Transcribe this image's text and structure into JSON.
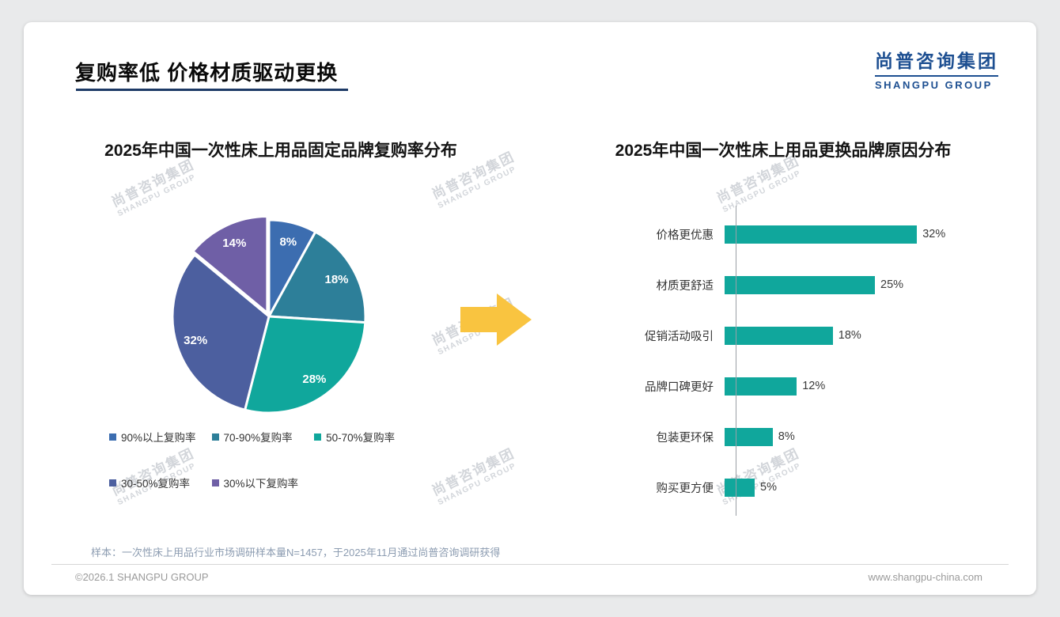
{
  "header": {
    "title": "复购率低 价格材质驱动更换",
    "logo_cn": "尚普咨询集团",
    "logo_en": "SHANGPU GROUP"
  },
  "watermark": {
    "cn": "尚普咨询集团",
    "en": "SHANGPU GROUP"
  },
  "chart_data": [
    {
      "type": "pie",
      "title": "2025年中国一次性床上用品固定品牌复购率分布",
      "labels": [
        "90%以上复购率",
        "70-90%复购率",
        "50-70%复购率",
        "30-50%复购率",
        "30%以下复购率"
      ],
      "values": [
        8,
        18,
        28,
        32,
        14
      ],
      "unit": "%",
      "colors": [
        "#3c6db0",
        "#2d7f99",
        "#10a79c",
        "#4c5f9f",
        "#6f5fa6"
      ],
      "start_angle": "top",
      "direction": "clockwise",
      "legend_position": "bottom",
      "label_style": "white-bold-inside"
    },
    {
      "type": "bar",
      "orientation": "horizontal",
      "title": "2025年中国一次性床上用品更换品牌原因分布",
      "categories": [
        "价格更优惠",
        "材质更舒适",
        "促销活动吸引",
        "品牌口碑更好",
        "包装更环保",
        "购买更方便"
      ],
      "values": [
        32,
        25,
        18,
        12,
        8,
        5
      ],
      "unit": "%",
      "bar_color": "#10a79c",
      "xlim": [
        0,
        35
      ],
      "grid": false,
      "value_labels": "right-of-bar"
    }
  ],
  "arrow_color": "#f9c440",
  "footer": {
    "note": "样本：一次性床上用品行业市场调研样本量N=1457，于2025年11月通过尚普咨询调研获得",
    "copyright": "©2026.1 SHANGPU GROUP",
    "website": "www.shangpu-china.com"
  }
}
